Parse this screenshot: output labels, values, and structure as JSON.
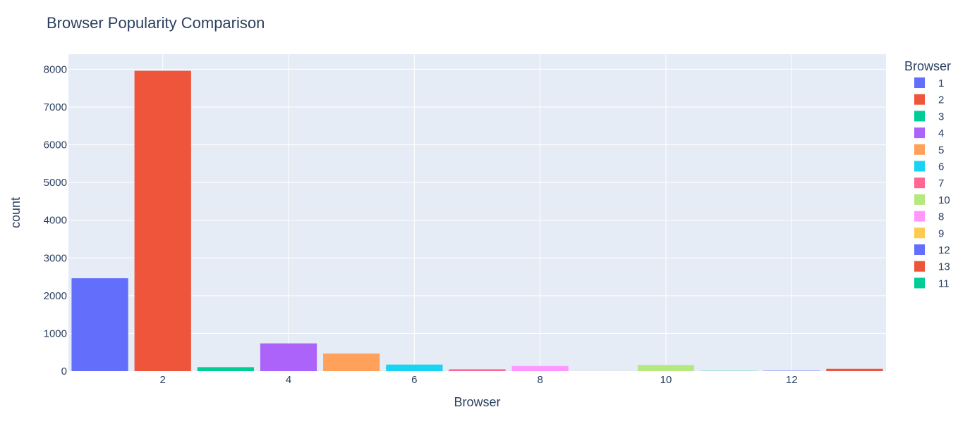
{
  "chart_data": {
    "type": "bar",
    "title": "Browser Popularity Comparison",
    "xlabel": "Browser",
    "ylabel": "count",
    "xlim": [
      0.5,
      13.5
    ],
    "ylim": [
      0,
      8400
    ],
    "x_ticks": [
      2,
      4,
      6,
      8,
      10,
      12
    ],
    "y_ticks": [
      0,
      1000,
      2000,
      3000,
      4000,
      5000,
      6000,
      7000,
      8000
    ],
    "grid": true,
    "legend": {
      "title": "Browser",
      "placement": "right"
    },
    "series": [
      {
        "name": "1",
        "x": 1,
        "value": 2462,
        "color": "#636efa"
      },
      {
        "name": "2",
        "x": 2,
        "value": 7961,
        "color": "#EF553B"
      },
      {
        "name": "3",
        "x": 3,
        "value": 105,
        "color": "#00cc96"
      },
      {
        "name": "4",
        "x": 4,
        "value": 736,
        "color": "#ab63fa"
      },
      {
        "name": "5",
        "x": 5,
        "value": 467,
        "color": "#FFA15A"
      },
      {
        "name": "6",
        "x": 6,
        "value": 174,
        "color": "#19d3f3"
      },
      {
        "name": "7",
        "x": 7,
        "value": 49,
        "color": "#FF6692"
      },
      {
        "name": "10",
        "x": 10,
        "value": 163,
        "color": "#B6E880"
      },
      {
        "name": "8",
        "x": 8,
        "value": 135,
        "color": "#FF97FF"
      },
      {
        "name": "9",
        "x": 9,
        "value": 1,
        "color": "#FECB52"
      },
      {
        "name": "12",
        "x": 12,
        "value": 10,
        "color": "#636efa"
      },
      {
        "name": "13",
        "x": 13,
        "value": 61,
        "color": "#EF553B"
      },
      {
        "name": "11",
        "x": 11,
        "value": 6,
        "color": "#00cc96"
      }
    ]
  }
}
